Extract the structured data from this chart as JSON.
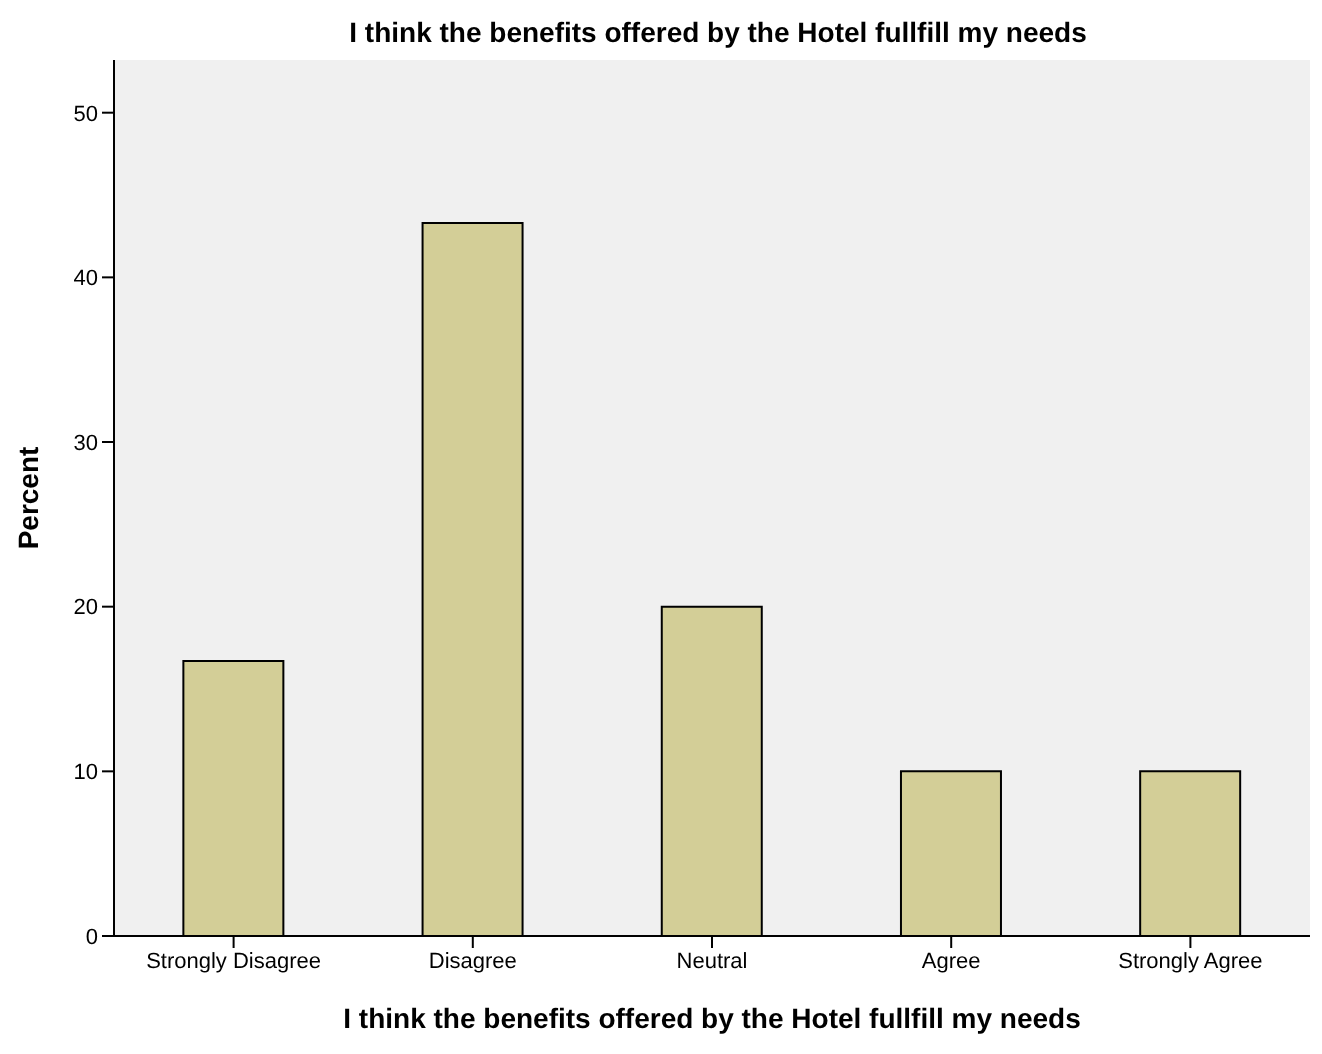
{
  "chart_data": {
    "type": "bar",
    "title": "I think the benefits offered by the Hotel fullfill my needs",
    "xlabel": "I think the benefits offered by the Hotel fullfill my needs",
    "ylabel": "Percent",
    "categories": [
      "Strongly Disagree",
      "Disagree",
      "Neutral",
      "Agree",
      "Strongly Agree"
    ],
    "values": [
      16.7,
      43.3,
      20,
      10,
      10
    ],
    "color": "#d3ce97",
    "ylim": [
      0,
      53.2
    ],
    "yticks": [
      0,
      10,
      20,
      30,
      40,
      50
    ],
    "grid": false
  }
}
